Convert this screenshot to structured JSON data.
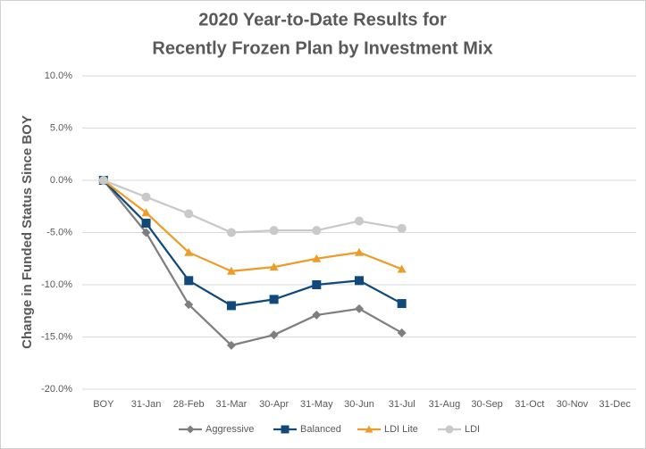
{
  "chart_data": {
    "type": "line",
    "title": [
      "2020 Year-to-Date Results for",
      "Recently Frozen Plan by Investment Mix"
    ],
    "y_label": "Change in Funded Status Since BOY",
    "categories": [
      "BOY",
      "31-Jan",
      "28-Feb",
      "31-Mar",
      "30-Apr",
      "31-May",
      "30-Jun",
      "31-Jul",
      "31-Aug",
      "30-Sep",
      "31-Oct",
      "30-Nov",
      "31-Dec"
    ],
    "series": [
      {
        "name": "Aggressive",
        "color": "#7f7f7f",
        "marker": "diamond",
        "values": [
          0,
          -5.0,
          -11.9,
          -15.8,
          -14.8,
          -12.9,
          -12.3,
          -14.6,
          null,
          null,
          null,
          null,
          null
        ]
      },
      {
        "name": "Balanced",
        "color": "#0f4a7a",
        "marker": "square",
        "values": [
          0,
          -4.1,
          -9.6,
          -12.0,
          -11.4,
          -10.0,
          -9.6,
          -11.8,
          null,
          null,
          null,
          null,
          null
        ]
      },
      {
        "name": "LDI Lite",
        "color": "#ed9c2a",
        "marker": "triangle",
        "values": [
          0,
          -3.1,
          -6.9,
          -8.7,
          -8.3,
          -7.5,
          -6.9,
          -8.5,
          null,
          null,
          null,
          null,
          null
        ]
      },
      {
        "name": "LDI",
        "color": "#c9c9c9",
        "marker": "circle",
        "values": [
          0,
          -1.6,
          -3.2,
          -5.0,
          -4.8,
          -4.8,
          -3.9,
          -4.6,
          null,
          null,
          null,
          null,
          null
        ]
      }
    ],
    "ylim": [
      -20,
      10
    ],
    "yticks": [
      {
        "value": -20,
        "label": "-20.0%"
      },
      {
        "value": -15,
        "label": "-15.0%"
      },
      {
        "value": -10,
        "label": "-10.0%"
      },
      {
        "value": -5,
        "label": "-5.0%"
      },
      {
        "value": 0,
        "label": "0.0%"
      },
      {
        "value": 5,
        "label": "5.0%"
      },
      {
        "value": 10,
        "label": "10.0%"
      }
    ],
    "grid": true,
    "legend": "bottom"
  }
}
